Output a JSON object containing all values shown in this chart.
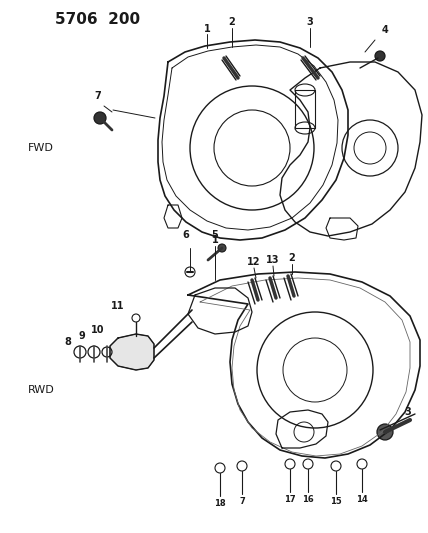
{
  "title": "5706  200",
  "bg_color": "#ffffff",
  "line_color": "#1a1a1a",
  "fwd_label": "FWD",
  "rwd_label": "RWD",
  "font_size_title": 11,
  "font_size_label": 7,
  "font_size_section": 8
}
